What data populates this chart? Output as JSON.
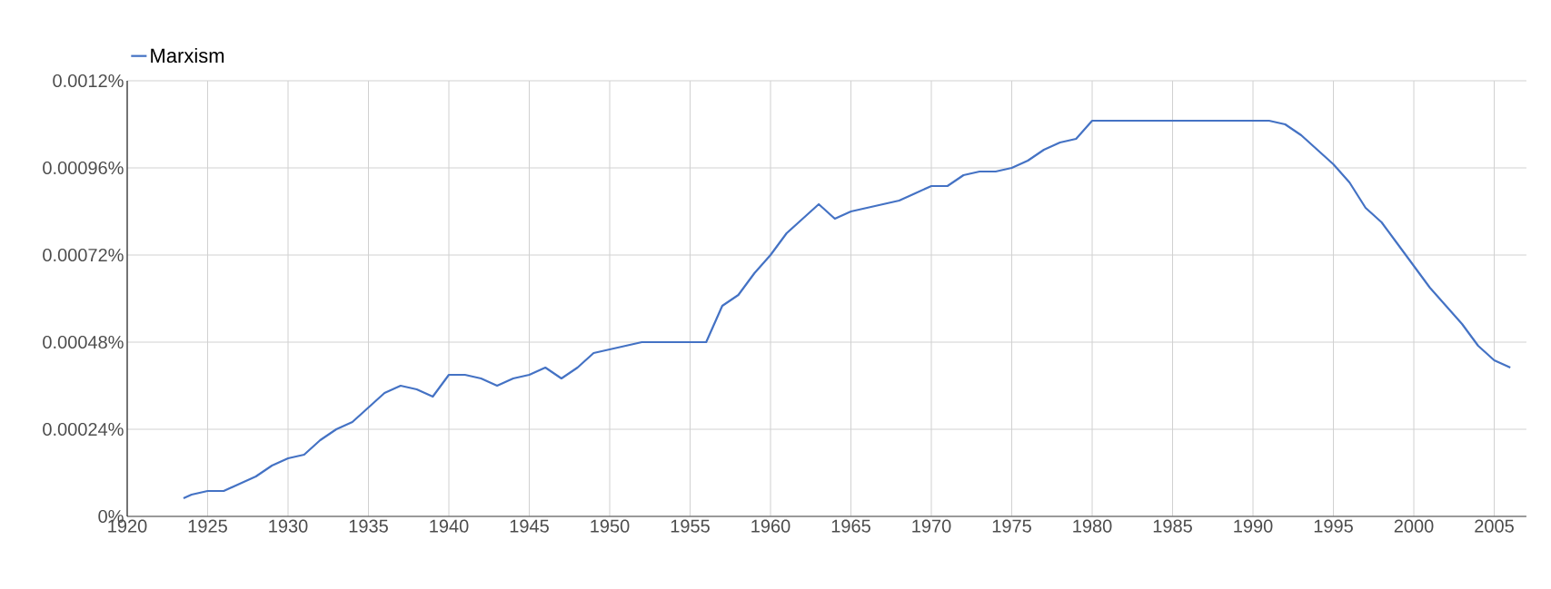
{
  "chart_data": {
    "type": "line",
    "legend": "top left",
    "grid": true,
    "xlim": [
      1920,
      2007
    ],
    "xticks": [
      {
        "value": 1920,
        "label": "1920"
      },
      {
        "value": 1925,
        "label": "1925"
      },
      {
        "value": 1930,
        "label": "1930"
      },
      {
        "value": 1935,
        "label": "1935"
      },
      {
        "value": 1940,
        "label": "1940"
      },
      {
        "value": 1945,
        "label": "1945"
      },
      {
        "value": 1950,
        "label": "1950"
      },
      {
        "value": 1955,
        "label": "1955"
      },
      {
        "value": 1960,
        "label": "1960"
      },
      {
        "value": 1965,
        "label": "1965"
      },
      {
        "value": 1970,
        "label": "1970"
      },
      {
        "value": 1975,
        "label": "1975"
      },
      {
        "value": 1980,
        "label": "1980"
      },
      {
        "value": 1985,
        "label": "1985"
      },
      {
        "value": 1990,
        "label": "1990"
      },
      {
        "value": 1995,
        "label": "1995"
      },
      {
        "value": 2000,
        "label": "2000"
      },
      {
        "value": 2005,
        "label": "2005"
      }
    ],
    "ylim": [
      0,
      0.0012
    ],
    "yticks": [
      {
        "value": 0,
        "label": "0%"
      },
      {
        "value": 0.00024,
        "label": "0.00024%"
      },
      {
        "value": 0.00048,
        "label": "0.00048%"
      },
      {
        "value": 0.00072,
        "label": "0.00072%"
      },
      {
        "value": 0.00096,
        "label": "0.00096%"
      },
      {
        "value": 0.0012,
        "label": "0.0012%"
      }
    ],
    "series": [
      {
        "name": "Marxism",
        "color": "#4472c4",
        "x": [
          1923.5,
          1924,
          1925,
          1926,
          1927,
          1928,
          1929,
          1930,
          1931,
          1932,
          1933,
          1934,
          1935,
          1936,
          1937,
          1938,
          1939,
          1940,
          1941,
          1942,
          1943,
          1944,
          1945,
          1946,
          1947,
          1948,
          1949,
          1952,
          1956,
          1957,
          1958,
          1959,
          1960,
          1961,
          1962,
          1963,
          1964,
          1965,
          1966,
          1967,
          1968,
          1969,
          1970,
          1971,
          1972,
          1973,
          1974,
          1975,
          1976,
          1977,
          1978,
          1979,
          1980,
          1991,
          1992,
          1993,
          1994,
          1995,
          1996,
          1997,
          1998,
          1999,
          2000,
          2001,
          2002,
          2003,
          2004,
          2005,
          2006
        ],
        "values": [
          5e-05,
          6e-05,
          7e-05,
          7e-05,
          9e-05,
          0.00011,
          0.00014,
          0.00016,
          0.00017,
          0.00021,
          0.00024,
          0.00026,
          0.0003,
          0.00034,
          0.00036,
          0.00035,
          0.00033,
          0.00039,
          0.00039,
          0.00038,
          0.00036,
          0.00038,
          0.00039,
          0.00041,
          0.00038,
          0.00041,
          0.00045,
          0.00048,
          0.00048,
          0.00058,
          0.00061,
          0.00067,
          0.00072,
          0.00078,
          0.00082,
          0.00086,
          0.00082,
          0.00084,
          0.00085,
          0.00086,
          0.00087,
          0.00089,
          0.00091,
          0.00091,
          0.00094,
          0.00095,
          0.00095,
          0.00096,
          0.00098,
          0.00101,
          0.00103,
          0.00104,
          0.00109,
          0.00109,
          0.00108,
          0.00105,
          0.00101,
          0.00097,
          0.00092,
          0.00085,
          0.00081,
          0.00075,
          0.00069,
          0.00063,
          0.00058,
          0.00053,
          0.00047,
          0.00043,
          0.00041
        ]
      }
    ]
  }
}
